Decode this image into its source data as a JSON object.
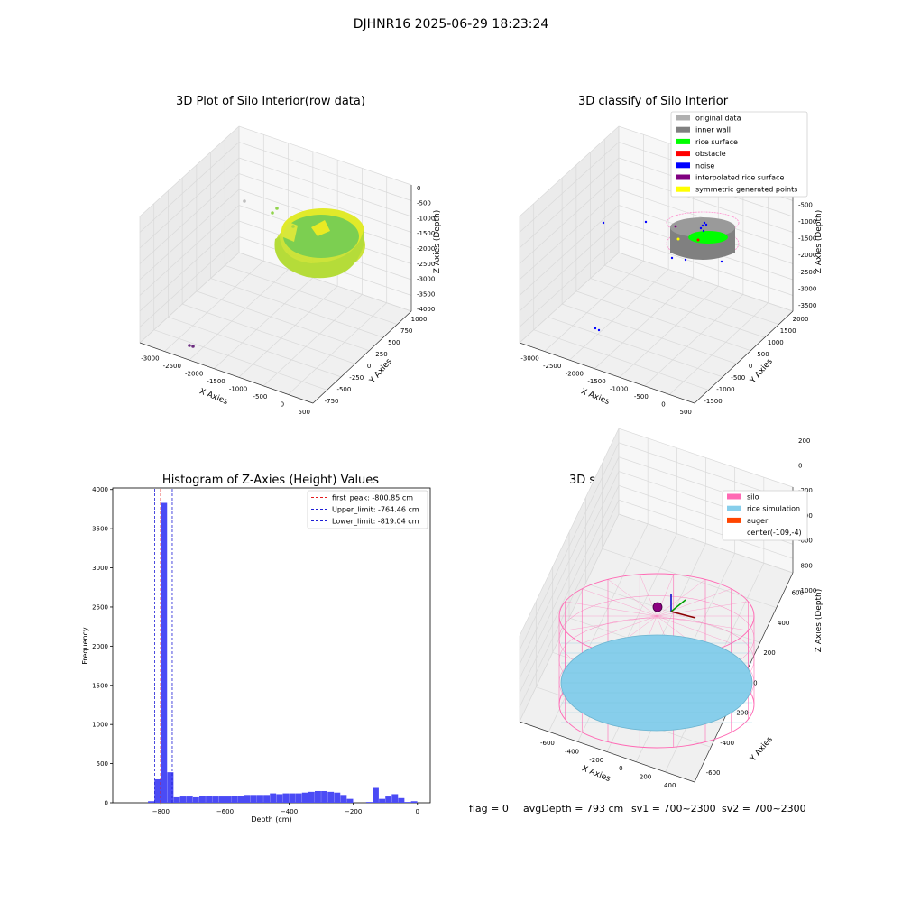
{
  "suptitle": "DJHNR16 2025-06-29 18:23:24",
  "footer": {
    "flag": "flag = 0",
    "avg": "avgDepth = 793 cm",
    "sv1": "sv1 = 700~2300",
    "sv2": "sv2 = 700~2300"
  },
  "colors": {
    "hist_bar": "#4b4bf5",
    "first_peak": "#e31a1c",
    "limits": "#1f1fd6",
    "silo": "#ff69b4",
    "rice": "#87ceeb",
    "auger": "#ff4500",
    "grid": "#d9d9d9"
  },
  "chart_data": [
    {
      "type": "scatter",
      "dims": 3,
      "title": "3D Plot of Silo Interior(row data)",
      "xlabel": "X Axies",
      "ylabel": "Y Axies",
      "zlabel": "Z Axies (Depth)",
      "xticks": [
        "-3000",
        "-2500",
        "-2000",
        "-1500",
        "-1000",
        "-500",
        "0",
        "500"
      ],
      "yticks": [
        "-750",
        "-500",
        "-250",
        "0",
        "250",
        "500",
        "750",
        "1000"
      ],
      "zticks": [
        "0",
        "-500",
        "-1000",
        "-1500",
        "-2000",
        "-2500",
        "-3000",
        "-3500",
        "-4000"
      ],
      "xlim": [
        -3200,
        600
      ],
      "ylim": [
        -800,
        1100
      ],
      "zlim": [
        -4200,
        200
      ],
      "grid": true
    },
    {
      "type": "scatter",
      "dims": 3,
      "title": "3D classify of Silo Interior",
      "xlabel": "X Axies",
      "ylabel": "Y Axies",
      "zlabel": "Z Axies (Depth)",
      "xticks": [
        "-3000",
        "-2500",
        "-2000",
        "-1500",
        "-1000",
        "-500",
        "0",
        "500"
      ],
      "yticks": [
        "-1500",
        "-1000",
        "-500",
        "0",
        "500",
        "1000",
        "1500",
        "2000"
      ],
      "zticks": [
        "0",
        "-500",
        "-1000",
        "-1500",
        "-2000",
        "-2500",
        "-3000",
        "-3500"
      ],
      "xlim": [
        -3200,
        600
      ],
      "ylim": [
        -1600,
        2100
      ],
      "zlim": [
        -3700,
        200
      ],
      "grid": true,
      "legend": {
        "position": "top-right",
        "items": [
          {
            "label": "original data",
            "color": "#b0b0b0"
          },
          {
            "label": "inner wall",
            "color": "#808080"
          },
          {
            "label": "rice surface",
            "color": "#00ff00"
          },
          {
            "label": "obstacle",
            "color": "#ff0000"
          },
          {
            "label": "noise",
            "color": "#0000ff"
          },
          {
            "label": "interpolated rice surface",
            "color": "#800080"
          },
          {
            "label": "symmetric generated points",
            "color": "#ffff00"
          }
        ]
      }
    },
    {
      "type": "bar",
      "title": "Histogram of Z-Axies (Height) Values",
      "xlabel": "Depth (cm)",
      "ylabel": "Frequency",
      "xlim": [
        -950,
        40
      ],
      "ylim": [
        0,
        4020
      ],
      "xticks": [
        -800,
        -600,
        -400,
        -200,
        0
      ],
      "yticks": [
        0,
        500,
        1000,
        1500,
        2000,
        2500,
        3000,
        3500,
        4000
      ],
      "bin_width": 20,
      "bins": [
        {
          "x": -830,
          "v": 20
        },
        {
          "x": -810,
          "v": 300
        },
        {
          "x": -790,
          "v": 3830
        },
        {
          "x": -770,
          "v": 390
        },
        {
          "x": -750,
          "v": 70
        },
        {
          "x": -730,
          "v": 80
        },
        {
          "x": -710,
          "v": 80
        },
        {
          "x": -690,
          "v": 70
        },
        {
          "x": -670,
          "v": 90
        },
        {
          "x": -650,
          "v": 90
        },
        {
          "x": -630,
          "v": 80
        },
        {
          "x": -610,
          "v": 80
        },
        {
          "x": -590,
          "v": 80
        },
        {
          "x": -570,
          "v": 90
        },
        {
          "x": -550,
          "v": 90
        },
        {
          "x": -530,
          "v": 100
        },
        {
          "x": -510,
          "v": 100
        },
        {
          "x": -490,
          "v": 100
        },
        {
          "x": -470,
          "v": 100
        },
        {
          "x": -450,
          "v": 120
        },
        {
          "x": -430,
          "v": 110
        },
        {
          "x": -410,
          "v": 120
        },
        {
          "x": -390,
          "v": 120
        },
        {
          "x": -370,
          "v": 120
        },
        {
          "x": -350,
          "v": 130
        },
        {
          "x": -330,
          "v": 140
        },
        {
          "x": -310,
          "v": 150
        },
        {
          "x": -290,
          "v": 150
        },
        {
          "x": -270,
          "v": 140
        },
        {
          "x": -250,
          "v": 130
        },
        {
          "x": -230,
          "v": 100
        },
        {
          "x": -210,
          "v": 50
        },
        {
          "x": -150,
          "v": 10
        },
        {
          "x": -130,
          "v": 190
        },
        {
          "x": -110,
          "v": 50
        },
        {
          "x": -90,
          "v": 80
        },
        {
          "x": -70,
          "v": 110
        },
        {
          "x": -50,
          "v": 60
        },
        {
          "x": -30,
          "v": 10
        },
        {
          "x": -10,
          "v": 20
        }
      ],
      "vlines": [
        {
          "label": "first_peak: -800.85 cm",
          "x": -800.85,
          "color": "#e31a1c"
        },
        {
          "label": "Upper_limit: -764.46 cm",
          "x": -764.46,
          "color": "#1f1fd6"
        },
        {
          "label": "Lower_limit: -819.04 cm",
          "x": -819.04,
          "color": "#1f1fd6"
        }
      ],
      "legend": {
        "position": "top-right"
      }
    },
    {
      "type": "scatter",
      "dims": 3,
      "title": "3D simulation of Silo Interior",
      "xlabel": "X Axies",
      "ylabel": "Y Axies",
      "zlabel": "Z Axies (Depth)",
      "xticks": [
        "-600",
        "-400",
        "-200",
        "0",
        "200",
        "400"
      ],
      "yticks": [
        "-600",
        "-400",
        "-200",
        "0",
        "200",
        "400",
        "600"
      ],
      "zticks": [
        "200",
        "0",
        "-200",
        "-400",
        "-600",
        "-800",
        "-1000"
      ],
      "xlim": [
        -700,
        500
      ],
      "ylim": [
        -700,
        700
      ],
      "zlim": [
        -1050,
        300
      ],
      "grid": true,
      "legend": {
        "position": "top-right",
        "items": [
          {
            "label": "silo",
            "color": "#ff69b4"
          },
          {
            "label": "rice simulation",
            "color": "#87ceeb"
          },
          {
            "label": "auger",
            "color": "#ff4500"
          },
          {
            "label": "center(-109,-4)",
            "color": ""
          }
        ]
      }
    }
  ]
}
